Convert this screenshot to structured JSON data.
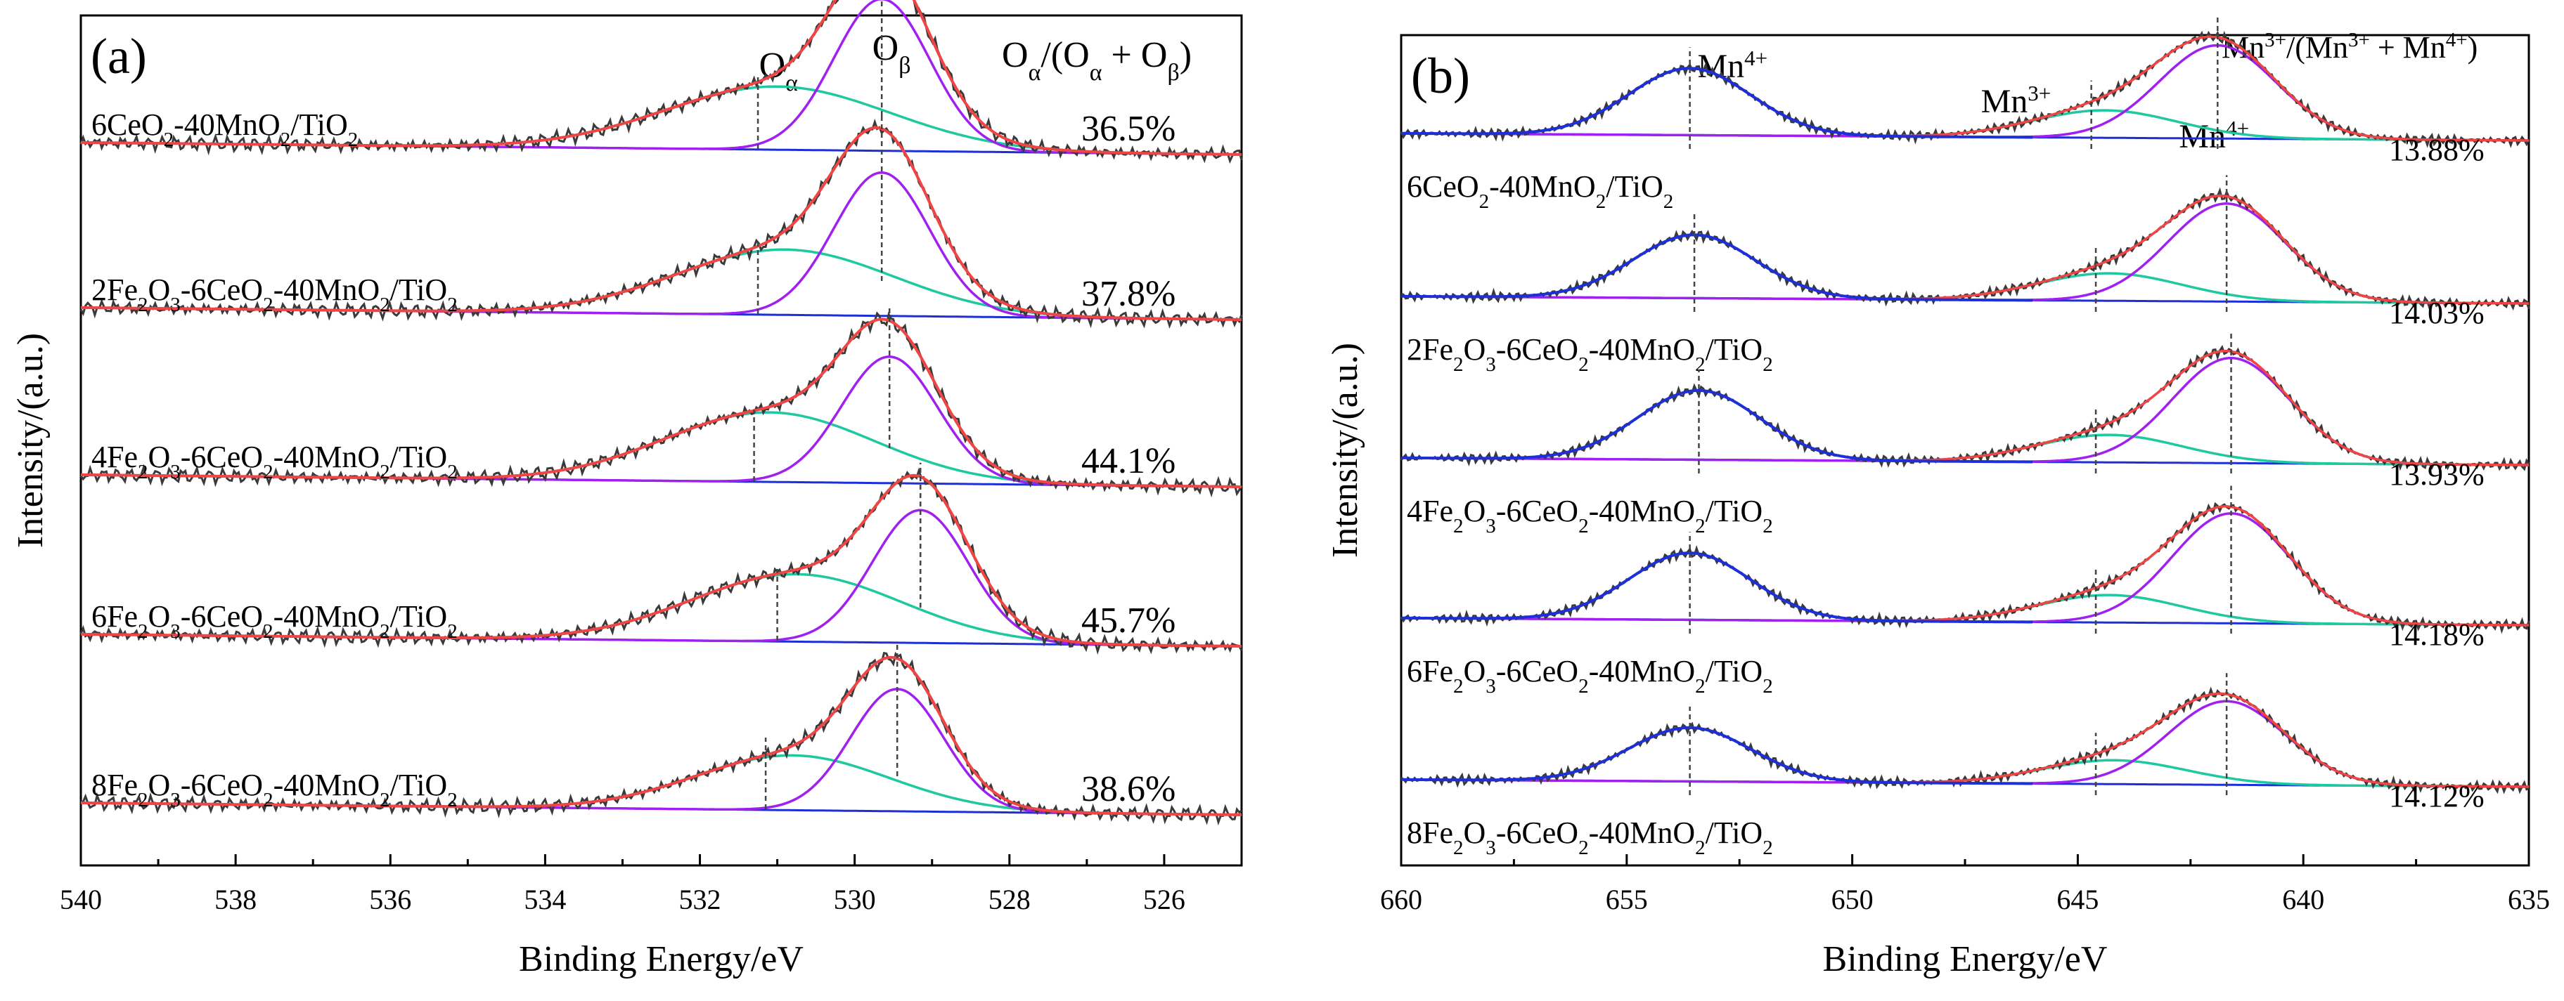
{
  "figure": {
    "colors": {
      "raw": "#3a3a3a",
      "envelope": "#f04545",
      "alpha": "#1ec8a0",
      "beta": "#a020f0",
      "baseline": "#1d2fd8",
      "mn4": "#1d2fd8",
      "mn3": "#1ec8a0",
      "mn4sat": "#a020f0",
      "marker": "#444444"
    }
  },
  "chart_data": [
    {
      "type": "line",
      "panel": "(a)",
      "xlabel": "Binding Energy/eV",
      "ylabel": "Intensity/(a.u.)",
      "xlim": [
        540,
        525
      ],
      "xticks": [
        540,
        538,
        536,
        534,
        532,
        530,
        528,
        526
      ],
      "header": {
        "prefix": "O",
        "sub1": "α",
        "mid": "/(O",
        "sub2": "α",
        "mid2": " + O",
        "sub3": "β",
        "suffix": ")"
      },
      "peak_labels": [
        {
          "main": "O",
          "sub": "α",
          "x": 531.15
        },
        {
          "main": "O",
          "sub": "β",
          "x": 529.7
        }
      ],
      "series": [
        {
          "name": "6CeO2-40MnO2/TiO2",
          "label_parts": [
            [
              "6CeO",
              "n"
            ],
            [
              "2",
              "s"
            ],
            [
              "-40MnO",
              "n"
            ],
            [
              "2",
              "s"
            ],
            [
              "/TiO",
              "n"
            ],
            [
              "2",
              "s"
            ]
          ],
          "ratio": "36.5%",
          "alpha_center": 531.0,
          "alpha_amp": 0.3,
          "alpha_sigma": 1.45,
          "beta_center": 529.65,
          "beta_amp": 0.72,
          "beta_sigma": 0.62,
          "marker_alpha": 531.25,
          "marker_beta": 529.65
        },
        {
          "name": "2Fe2O3-6CeO2-40MnO2/TiO2",
          "label_parts": [
            [
              "2Fe",
              "n"
            ],
            [
              "2",
              "s"
            ],
            [
              "O",
              "n"
            ],
            [
              "3",
              "s"
            ],
            [
              "-6CeO",
              "n"
            ],
            [
              "2",
              "s"
            ],
            [
              "-40MnO",
              "n"
            ],
            [
              "2",
              "s"
            ],
            [
              "/TiO",
              "n"
            ],
            [
              "2",
              "s"
            ]
          ],
          "ratio": "37.8%",
          "alpha_center": 530.9,
          "alpha_amp": 0.31,
          "alpha_sigma": 1.4,
          "beta_center": 529.65,
          "beta_amp": 0.68,
          "beta_sigma": 0.62,
          "marker_alpha": 531.25,
          "marker_beta": 529.65
        },
        {
          "name": "4Fe2O3-6CeO2-40MnO2/TiO2",
          "label_parts": [
            [
              "4Fe",
              "n"
            ],
            [
              "2",
              "s"
            ],
            [
              "O",
              "n"
            ],
            [
              "3",
              "s"
            ],
            [
              "-6CeO",
              "n"
            ],
            [
              "2",
              "s"
            ],
            [
              "-40MnO",
              "n"
            ],
            [
              "2",
              "s"
            ],
            [
              "/TiO",
              "n"
            ],
            [
              "2",
              "s"
            ]
          ],
          "ratio": "44.1%",
          "alpha_center": 531.1,
          "alpha_amp": 0.33,
          "alpha_sigma": 1.35,
          "beta_center": 529.55,
          "beta_amp": 0.6,
          "beta_sigma": 0.62,
          "marker_alpha": 531.3,
          "marker_beta": 529.55
        },
        {
          "name": "6Fe2O3-6CeO2-40MnO2/TiO2",
          "label_parts": [
            [
              "6Fe",
              "n"
            ],
            [
              "2",
              "s"
            ],
            [
              "O",
              "n"
            ],
            [
              "3",
              "s"
            ],
            [
              "-6CeO",
              "n"
            ],
            [
              "2",
              "s"
            ],
            [
              "-40MnO",
              "n"
            ],
            [
              "2",
              "s"
            ],
            [
              "/TiO",
              "n"
            ],
            [
              "2",
              "s"
            ]
          ],
          "ratio": "45.7%",
          "alpha_center": 530.75,
          "alpha_amp": 0.32,
          "alpha_sigma": 1.35,
          "beta_center": 529.15,
          "beta_amp": 0.63,
          "beta_sigma": 0.62,
          "marker_alpha": 531.0,
          "marker_beta": 529.15
        },
        {
          "name": "8Fe2O3-6CeO2-40MnO2/TiO2",
          "label_parts": [
            [
              "8Fe",
              "n"
            ],
            [
              "2",
              "s"
            ],
            [
              "O",
              "n"
            ],
            [
              "3",
              "s"
            ],
            [
              "-6CeO",
              "n"
            ],
            [
              "2",
              "s"
            ],
            [
              "-40MnO",
              "n"
            ],
            [
              "2",
              "s"
            ],
            [
              "/TiO",
              "n"
            ],
            [
              "2",
              "s"
            ]
          ],
          "ratio": "38.6%",
          "alpha_center": 530.8,
          "alpha_amp": 0.26,
          "alpha_sigma": 1.25,
          "beta_center": 529.45,
          "beta_amp": 0.58,
          "beta_sigma": 0.6,
          "marker_alpha": 531.15,
          "marker_beta": 529.45
        }
      ]
    },
    {
      "type": "line",
      "panel": "(b)",
      "xlabel": "Binding Energy/eV",
      "ylabel": "Intensity/(a.u.)",
      "xlim": [
        660,
        635
      ],
      "xticks": [
        660,
        655,
        650,
        645,
        640,
        635
      ],
      "header": {
        "prefix": "Mn",
        "sup1": "3+",
        "mid": "/(Mn",
        "sup2": "3+",
        "mid2": " + Mn",
        "sup3": "4+",
        "suffix": ")"
      },
      "peak_labels": [
        {
          "main": "Mn",
          "sup": "4+",
          "x": 653.4
        },
        {
          "main": "Mn",
          "sup": "3+",
          "x": 644.7
        },
        {
          "main": "Mn",
          "sup": "4+",
          "x": 641.2
        }
      ],
      "series": [
        {
          "name": "6CeO2-40MnO2/TiO2",
          "label_parts": [
            [
              "6CeO",
              "n"
            ],
            [
              "2",
              "s"
            ],
            [
              "-40MnO",
              "n"
            ],
            [
              "2",
              "s"
            ],
            [
              "/TiO",
              "n"
            ],
            [
              "2",
              "s"
            ]
          ],
          "ratio": "13.88%",
          "p1_center": 653.6,
          "p1_amp": 0.56,
          "p1_sigma": 1.35,
          "p2_center": 644.4,
          "p2_amp": 0.23,
          "p2_sigma": 1.6,
          "p3_center": 641.9,
          "p3_amp": 0.78,
          "p3_sigma": 1.3,
          "markers": [
            653.6,
            644.7,
            641.9
          ]
        },
        {
          "name": "2Fe2O3-6CeO2-40MnO2/TiO2",
          "label_parts": [
            [
              "2Fe",
              "n"
            ],
            [
              "2",
              "s"
            ],
            [
              "O",
              "n"
            ],
            [
              "3",
              "s"
            ],
            [
              "-6CeO",
              "n"
            ],
            [
              "2",
              "s"
            ],
            [
              "-40MnO",
              "n"
            ],
            [
              "2",
              "s"
            ],
            [
              "/TiO",
              "n"
            ],
            [
              "2",
              "s"
            ]
          ],
          "ratio": "14.03%",
          "p1_center": 653.5,
          "p1_amp": 0.53,
          "p1_sigma": 1.35,
          "p2_center": 644.3,
          "p2_amp": 0.23,
          "p2_sigma": 1.6,
          "p3_center": 641.7,
          "p3_amp": 0.82,
          "p3_sigma": 1.3,
          "markers": [
            653.5,
            644.6,
            641.7
          ]
        },
        {
          "name": "4Fe2O3-6CeO2-40MnO2/TiO2",
          "label_parts": [
            [
              "4Fe",
              "n"
            ],
            [
              "2",
              "s"
            ],
            [
              "O",
              "n"
            ],
            [
              "3",
              "s"
            ],
            [
              "-6CeO",
              "n"
            ],
            [
              "2",
              "s"
            ],
            [
              "-40MnO",
              "n"
            ],
            [
              "2",
              "s"
            ],
            [
              "/TiO",
              "n"
            ],
            [
              "2",
              "s"
            ]
          ],
          "ratio": "13.93%",
          "p1_center": 653.4,
          "p1_amp": 0.58,
          "p1_sigma": 1.35,
          "p2_center": 644.3,
          "p2_amp": 0.23,
          "p2_sigma": 1.6,
          "p3_center": 641.6,
          "p3_amp": 0.88,
          "p3_sigma": 1.3,
          "markers": [
            653.4,
            644.6,
            641.6
          ]
        },
        {
          "name": "6Fe2O3-6CeO2-40MnO2/TiO2",
          "label_parts": [
            [
              "6Fe",
              "n"
            ],
            [
              "2",
              "s"
            ],
            [
              "O",
              "n"
            ],
            [
              "3",
              "s"
            ],
            [
              "-6CeO",
              "n"
            ],
            [
              "2",
              "s"
            ],
            [
              "-40MnO",
              "n"
            ],
            [
              "2",
              "s"
            ],
            [
              "/TiO",
              "n"
            ],
            [
              "2",
              "s"
            ]
          ],
          "ratio": "14.18%",
          "p1_center": 653.6,
          "p1_amp": 0.56,
          "p1_sigma": 1.35,
          "p2_center": 644.3,
          "p2_amp": 0.23,
          "p2_sigma": 1.6,
          "p3_center": 641.6,
          "p3_amp": 0.92,
          "p3_sigma": 1.3,
          "markers": [
            653.6,
            644.6,
            641.6
          ]
        },
        {
          "name": "8Fe2O3-6CeO2-40MnO2/TiO2",
          "label_parts": [
            [
              "8Fe",
              "n"
            ],
            [
              "2",
              "s"
            ],
            [
              "O",
              "n"
            ],
            [
              "3",
              "s"
            ],
            [
              "-6CeO",
              "n"
            ],
            [
              "2",
              "s"
            ],
            [
              "-40MnO",
              "n"
            ],
            [
              "2",
              "s"
            ],
            [
              "/TiO",
              "n"
            ],
            [
              "2",
              "s"
            ]
          ],
          "ratio": "14.12%",
          "p1_center": 653.6,
          "p1_amp": 0.45,
          "p1_sigma": 1.35,
          "p2_center": 644.2,
          "p2_amp": 0.2,
          "p2_sigma": 1.6,
          "p3_center": 641.7,
          "p3_amp": 0.7,
          "p3_sigma": 1.3,
          "markers": [
            653.6,
            644.6,
            641.7
          ]
        }
      ]
    }
  ]
}
